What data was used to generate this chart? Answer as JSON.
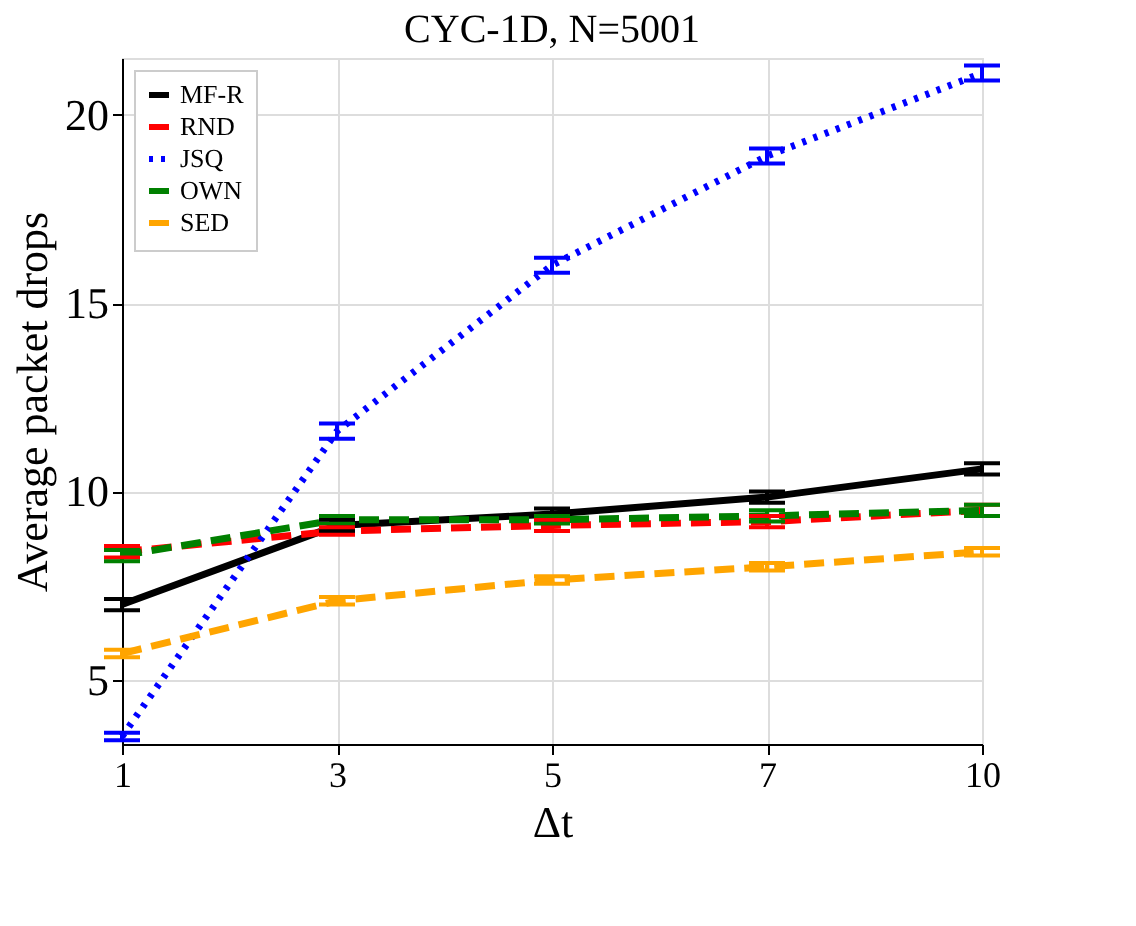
{
  "chart_data": {
    "type": "line",
    "title": "CYC-1D, N=5001",
    "xlabel": "Δt",
    "ylabel": "Average packet drops",
    "categories": [
      "1",
      "3",
      "5",
      "7",
      "10"
    ],
    "series": [
      {
        "name": "MF-R",
        "color": "#000000",
        "line_style": "solid",
        "values": [
          7.0,
          9.1,
          9.4,
          9.85,
          10.6
        ],
        "errors": [
          0.15,
          0.15,
          0.15,
          0.15,
          0.15
        ]
      },
      {
        "name": "RND",
        "color": "#ff0000",
        "line_style": "dashed",
        "values": [
          8.4,
          8.95,
          9.1,
          9.2,
          9.5
        ],
        "errors": [
          0.15,
          0.1,
          0.15,
          0.15,
          0.15
        ]
      },
      {
        "name": "JSQ",
        "color": "#0000ff",
        "line_style": "dotted",
        "values": [
          3.5,
          11.6,
          16.0,
          18.9,
          21.1
        ],
        "errors": [
          0.1,
          0.2,
          0.2,
          0.2,
          0.2
        ]
      },
      {
        "name": "OWN",
        "color": "#008000",
        "line_style": "dashed",
        "values": [
          8.3,
          9.25,
          9.25,
          9.35,
          9.5
        ],
        "errors": [
          0.15,
          0.1,
          0.1,
          0.15,
          0.15
        ]
      },
      {
        "name": "SED",
        "color": "#ffa500",
        "line_style": "dashed",
        "values": [
          5.7,
          7.1,
          7.65,
          8.0,
          8.4
        ],
        "errors": [
          0.1,
          0.1,
          0.1,
          0.1,
          0.1
        ]
      }
    ],
    "ylim": [
      3.3,
      21.5
    ],
    "yticks": [
      5,
      10,
      15,
      20
    ],
    "grid": true,
    "legend": "top left",
    "marker": "none"
  }
}
